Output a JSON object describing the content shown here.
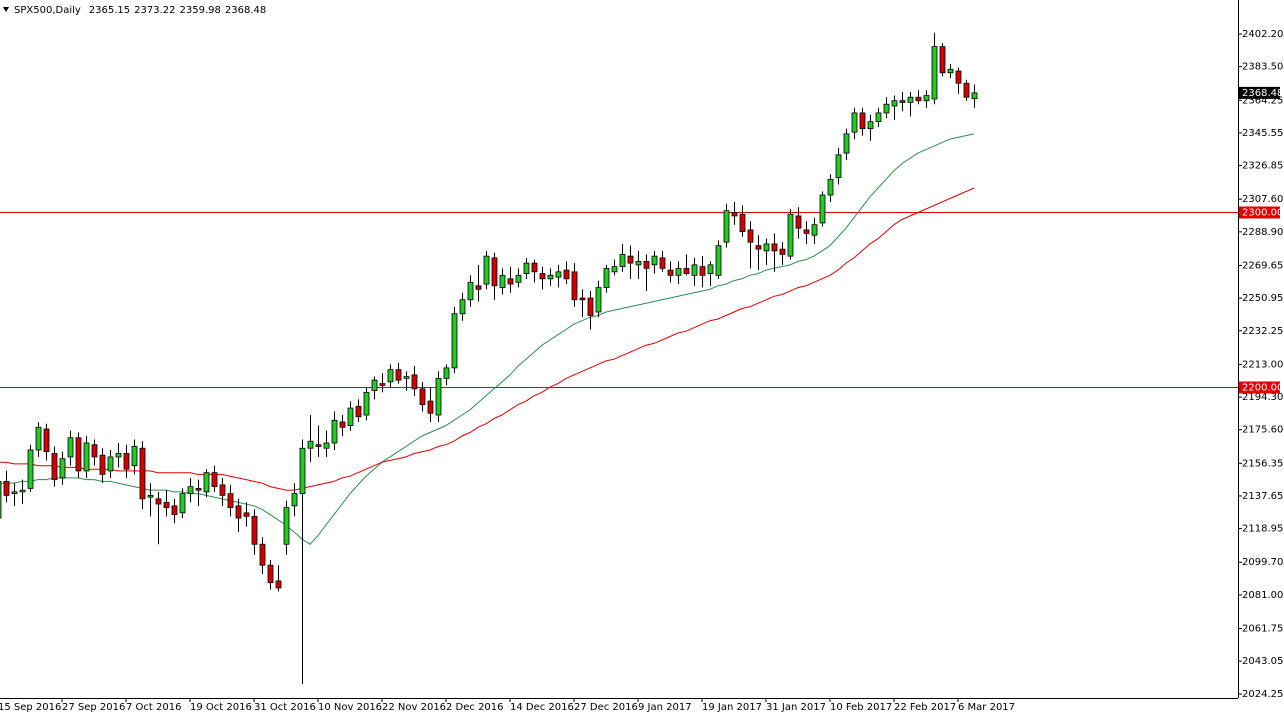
{
  "chart_data": {
    "type": "candlestick",
    "title": "SPX500,Daily",
    "categories": [
      "15 Sep 2016",
      null,
      null,
      null,
      null,
      null,
      null,
      null,
      "27 Sep 2016",
      null,
      null,
      null,
      null,
      null,
      null,
      null,
      "7 Oct 2016",
      null,
      null,
      null,
      null,
      null,
      null,
      null,
      "19 Oct 2016",
      null,
      null,
      null,
      null,
      null,
      null,
      null,
      "31 Oct 2016",
      null,
      null,
      null,
      null,
      null,
      null,
      null,
      "10 Nov 2016",
      null,
      null,
      null,
      null,
      null,
      null,
      null,
      "22 Nov 2016",
      null,
      null,
      null,
      null,
      null,
      null,
      null,
      "2 Dec 2016",
      null,
      null,
      null,
      null,
      null,
      null,
      null,
      "14 Dec 2016",
      null,
      null,
      null,
      null,
      null,
      null,
      null,
      "27 Dec 2016",
      null,
      null,
      null,
      null,
      null,
      null,
      null,
      "9 Jan 2017",
      null,
      null,
      null,
      null,
      null,
      null,
      null,
      "19 Jan 2017",
      null,
      null,
      null,
      null,
      null,
      null,
      null,
      "31 Jan 2017",
      null,
      null,
      null,
      null,
      null,
      null,
      null,
      "10 Feb 2017",
      null,
      null,
      null,
      null,
      null,
      null,
      null,
      "22 Feb 2017",
      null,
      null,
      null,
      null,
      null,
      null,
      null,
      "6 Mar 2017",
      null,
      null
    ],
    "open": [
      2125,
      2146,
      2139,
      2140,
      2142,
      2164,
      2176,
      2162,
      2148,
      2160,
      2171,
      2152,
      2167,
      2161,
      2152,
      2160,
      2162,
      2155,
      2165,
      2137,
      2136,
      2134,
      2132,
      2128,
      2139,
      2142,
      2140,
      2151,
      2144,
      2139,
      2132,
      2128,
      2126,
      2110,
      2098,
      2089,
      2110,
      2132,
      2139,
      2165,
      2167,
      2165,
      2168,
      2180,
      2178,
      2189,
      2184,
      2198,
      2202,
      2203,
      2210,
      2205,
      2207,
      2199,
      2192,
      2184,
      2205,
      2211,
      2242,
      2250,
      2258,
      2259,
      2274,
      2257,
      2262,
      2260,
      2265,
      2271,
      2265,
      2262,
      2263,
      2267,
      2266,
      2251,
      2251,
      2243,
      2257,
      2266,
      2269,
      2275,
      2270,
      2272,
      2270,
      2274,
      2267,
      2264,
      2268,
      2264,
      2269,
      2265,
      2264,
      2283,
      2300,
      2299,
      2290,
      2281,
      2278,
      2282,
      2279,
      2275,
      2298,
      2290,
      2287,
      2294,
      2310,
      2320,
      2334,
      2346,
      2357,
      2348,
      2352,
      2357,
      2361,
      2364,
      2363,
      2366,
      2364,
      2365,
      2395,
      2380,
      2381,
      2374,
      2365.15
    ],
    "high": [
      2150,
      2152,
      2145,
      2147,
      2167,
      2180,
      2179,
      2166,
      2163,
      2175,
      2174,
      2172,
      2170,
      2165,
      2164,
      2168,
      2167,
      2170,
      2169,
      2145,
      2140,
      2141,
      2136,
      2142,
      2148,
      2147,
      2153,
      2155,
      2148,
      2144,
      2136,
      2134,
      2130,
      2114,
      2101,
      2098,
      2135,
      2145,
      2170,
      2184,
      2178,
      2175,
      2186,
      2184,
      2192,
      2193,
      2200,
      2206,
      2208,
      2213,
      2214,
      2209,
      2212,
      2203,
      2200,
      2209,
      2213,
      2246,
      2254,
      2264,
      2270,
      2278,
      2277,
      2268,
      2269,
      2268,
      2274,
      2273,
      2269,
      2268,
      2270,
      2272,
      2271,
      2256,
      2255,
      2261,
      2270,
      2273,
      2282,
      2281,
      2278,
      2276,
      2278,
      2278,
      2272,
      2272,
      2276,
      2274,
      2275,
      2272,
      2284,
      2305,
      2306,
      2304,
      2295,
      2287,
      2285,
      2288,
      2283,
      2302,
      2303,
      2295,
      2297,
      2312,
      2322,
      2337,
      2348,
      2360,
      2360,
      2356,
      2360,
      2366,
      2367,
      2369,
      2369,
      2370,
      2370,
      2403,
      2397,
      2385,
      2383,
      2376,
      2373.22
    ],
    "low": [
      2118,
      2134,
      2132,
      2133,
      2140,
      2160,
      2158,
      2143,
      2144,
      2155,
      2148,
      2148,
      2155,
      2145,
      2148,
      2154,
      2148,
      2150,
      2130,
      2126,
      2110,
      2126,
      2122,
      2125,
      2134,
      2132,
      2137,
      2140,
      2132,
      2126,
      2117,
      2120,
      2104,
      2093,
      2084,
      2083,
      2104,
      2126,
      2030,
      2157,
      2160,
      2160,
      2164,
      2172,
      2175,
      2180,
      2181,
      2193,
      2197,
      2200,
      2202,
      2198,
      2195,
      2186,
      2180,
      2180,
      2201,
      2208,
      2238,
      2246,
      2249,
      2256,
      2250,
      2253,
      2254,
      2257,
      2262,
      2260,
      2256,
      2258,
      2257,
      2259,
      2246,
      2240,
      2233,
      2240,
      2254,
      2264,
      2266,
      2262,
      2262,
      2255,
      2265,
      2266,
      2260,
      2259,
      2264,
      2258,
      2257,
      2258,
      2262,
      2280,
      2293,
      2286,
      2268,
      2267,
      2270,
      2266,
      2270,
      2273,
      2285,
      2282,
      2282,
      2292,
      2306,
      2316,
      2330,
      2342,
      2344,
      2341,
      2349,
      2354,
      2353,
      2358,
      2355,
      2362,
      2360,
      2362,
      2378,
      2377,
      2368,
      2364,
      2359.98
    ],
    "close": [
      2146,
      2138,
      2140,
      2141,
      2164,
      2177,
      2163,
      2147,
      2159,
      2171,
      2152,
      2168,
      2160,
      2150,
      2160,
      2162,
      2153,
      2166,
      2136,
      2138,
      2133,
      2131,
      2127,
      2139,
      2143,
      2141,
      2151,
      2143,
      2138,
      2131,
      2125,
      2126,
      2110,
      2098,
      2088,
      2085,
      2131,
      2139,
      2165,
      2169,
      2166,
      2168,
      2181,
      2177,
      2188,
      2183,
      2197,
      2204,
      2201,
      2210,
      2204,
      2206,
      2199,
      2190,
      2185,
      2205,
      2211,
      2242,
      2250,
      2260,
      2256,
      2275,
      2258,
      2264,
      2259,
      2264,
      2271,
      2266,
      2262,
      2264,
      2266,
      2262,
      2250,
      2250,
      2241,
      2257,
      2268,
      2269,
      2276,
      2271,
      2272,
      2268,
      2275,
      2268,
      2264,
      2268,
      2265,
      2270,
      2264,
      2270,
      2281,
      2301,
      2298,
      2289,
      2283,
      2279,
      2282,
      2278,
      2276,
      2299,
      2291,
      2288,
      2293,
      2310,
      2319,
      2333,
      2345,
      2357,
      2348,
      2352,
      2357,
      2362,
      2364,
      2363,
      2366,
      2364,
      2367,
      2395,
      2380,
      2382,
      2374,
      2366,
      2368.48
    ],
    "up_color": "#22cc22",
    "down_color": "#d40000",
    "lines": [
      {
        "color": "#2e8b57",
        "values": [
          2145,
          2145,
          2145,
          2146,
          2146,
          2147,
          2147,
          2148,
          2148,
          2148,
          2148,
          2147,
          2147,
          2146,
          2146,
          2145,
          2144,
          2143,
          2142,
          2141,
          2141,
          2141,
          2140,
          2140,
          2139,
          2139,
          2138,
          2137,
          2136,
          2135,
          2134,
          2133,
          2132,
          2130,
          2127,
          2124,
          2121,
          2117,
          2113,
          2110,
          2115,
          2121,
          2127,
          2133,
          2139,
          2144,
          2149,
          2153,
          2157,
          2160,
          2163,
          2166,
          2169,
          2172,
          2174,
          2176,
          2178,
          2181,
          2184,
          2187,
          2191,
          2195,
          2199,
          2203,
          2207,
          2212,
          2216,
          2220,
          2224,
          2227,
          2230,
          2233,
          2236,
          2238,
          2240,
          2241,
          2243,
          2244,
          2245,
          2246,
          2247,
          2248,
          2249,
          2250,
          2251,
          2252,
          2253,
          2254,
          2255,
          2256,
          2258,
          2259,
          2261,
          2262,
          2264,
          2265,
          2267,
          2268,
          2269,
          2270,
          2272,
          2273,
          2275,
          2278,
          2281,
          2286,
          2291,
          2297,
          2303,
          2309,
          2314,
          2319,
          2324,
          2328,
          2331,
          2334,
          2336,
          2338,
          2340,
          2342,
          2343,
          2344,
          2345
        ]
      },
      {
        "color": "#e00000",
        "values": [
          2157,
          2157,
          2156,
          2156,
          2156,
          2155,
          2155,
          2155,
          2154,
          2154,
          2154,
          2153,
          2153,
          2153,
          2153,
          2152,
          2152,
          2152,
          2152,
          2152,
          2151,
          2151,
          2151,
          2151,
          2151,
          2150,
          2150,
          2150,
          2150,
          2149,
          2148,
          2147,
          2146,
          2145,
          2143,
          2142,
          2141,
          2141,
          2142,
          2143,
          2144,
          2145,
          2146,
          2148,
          2149,
          2151,
          2153,
          2155,
          2157,
          2158,
          2159,
          2160,
          2162,
          2163,
          2164,
          2166,
          2167,
          2169,
          2172,
          2174,
          2177,
          2179,
          2182,
          2184,
          2187,
          2190,
          2192,
          2195,
          2197,
          2200,
          2202,
          2205,
          2207,
          2209,
          2211,
          2213,
          2215,
          2216,
          2218,
          2220,
          2222,
          2224,
          2225,
          2227,
          2229,
          2231,
          2232,
          2234,
          2236,
          2238,
          2239,
          2241,
          2243,
          2245,
          2246,
          2248,
          2250,
          2252,
          2253,
          2255,
          2257,
          2258,
          2260,
          2262,
          2264,
          2267,
          2271,
          2274,
          2278,
          2282,
          2285,
          2289,
          2293,
          2296,
          2298,
          2300,
          2302,
          2304,
          2306,
          2308,
          2310,
          2312,
          2314
        ]
      }
    ],
    "hlines": [
      {
        "value": 2300,
        "label": "2300.00"
      },
      {
        "value": 2200,
        "label": "2200.00"
      }
    ],
    "hline_color": "#e00000",
    "ylim": [
      2021.96,
      2421.67
    ],
    "yticks": [
      {
        "value": 2402.2,
        "label": "2402.20"
      },
      {
        "value": 2383.5,
        "label": "2383.50"
      },
      {
        "value": 2364.25,
        "label": "2364.25"
      },
      {
        "value": 2345.55,
        "label": "2345.55"
      },
      {
        "value": 2326.85,
        "label": "2326.85"
      },
      {
        "value": 2307.6,
        "label": "2307.60"
      },
      {
        "value": 2288.9,
        "label": "2288.90"
      },
      {
        "value": 2269.65,
        "label": "2269.65"
      },
      {
        "value": 2250.95,
        "label": "2250.95"
      },
      {
        "value": 2232.25,
        "label": "2232.25"
      },
      {
        "value": 2213,
        "label": "2213.00"
      },
      {
        "value": 2194.3,
        "label": "2194.30"
      },
      {
        "value": 2175.6,
        "label": "2175.60"
      },
      {
        "value": 2156.35,
        "label": "2156.35"
      },
      {
        "value": 2137.65,
        "label": "2137.65"
      },
      {
        "value": 2118.95,
        "label": "2118.95"
      },
      {
        "value": 2099.7,
        "label": "2099.70"
      },
      {
        "value": 2081,
        "label": "2081.00"
      },
      {
        "value": 2061.75,
        "label": "2061.75"
      },
      {
        "value": 2043.05,
        "label": "2043.05"
      },
      {
        "value": 2024.25,
        "label": "2024.25"
      }
    ]
  }
}
